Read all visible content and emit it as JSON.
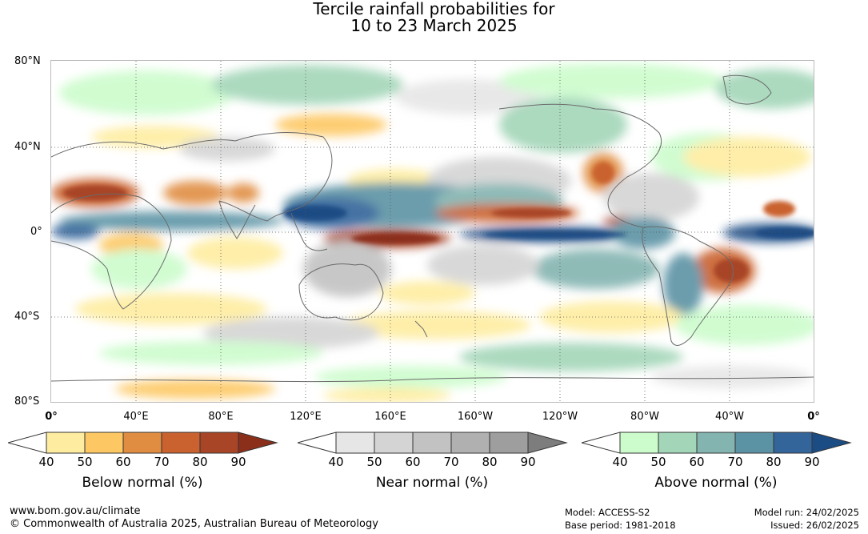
{
  "title": {
    "line1": "Tercile rainfall probabilities for",
    "line2": "10 to 23 March 2025"
  },
  "map": {
    "lat_labels": [
      "80°N",
      "40°N",
      "0°",
      "40°S",
      "80°S"
    ],
    "lon_labels": [
      "0°",
      "40°E",
      "80°E",
      "120°E",
      "160°E",
      "160°W",
      "120°W",
      "80°W",
      "40°W",
      "0°"
    ]
  },
  "legends": [
    {
      "title": "Below normal (%)",
      "ticks": [
        "40",
        "50",
        "60",
        "70",
        "80",
        "90"
      ],
      "colors": [
        "#ffffff",
        "#feeda0",
        "#fdc863",
        "#e08d42",
        "#c9622f",
        "#a84526",
        "#8c2f1a"
      ]
    },
    {
      "title": "Near normal (%)",
      "ticks": [
        "40",
        "50",
        "60",
        "70",
        "80",
        "90"
      ],
      "colors": [
        "#ffffff",
        "#e6e6e6",
        "#d4d4d4",
        "#c2c2c2",
        "#b0b0b0",
        "#9e9e9e",
        "#7d7d7d"
      ]
    },
    {
      "title": "Above normal (%)",
      "ticks": [
        "40",
        "50",
        "60",
        "70",
        "80",
        "90"
      ],
      "colors": [
        "#ffffff",
        "#ccfccc",
        "#a3d6b8",
        "#83b4b0",
        "#5c93a4",
        "#33649a",
        "#1b4c84"
      ]
    }
  ],
  "footer": {
    "website": "www.bom.gov.au/climate",
    "copyright": "© Commonwealth of Australia 2025, Australian Bureau of Meteorology",
    "model": "Model: ACCESS-S2",
    "base_period": "Base period: 1981-2018",
    "model_run": "Model run: 24/02/2025",
    "issued": "Issued: 26/02/2025"
  }
}
